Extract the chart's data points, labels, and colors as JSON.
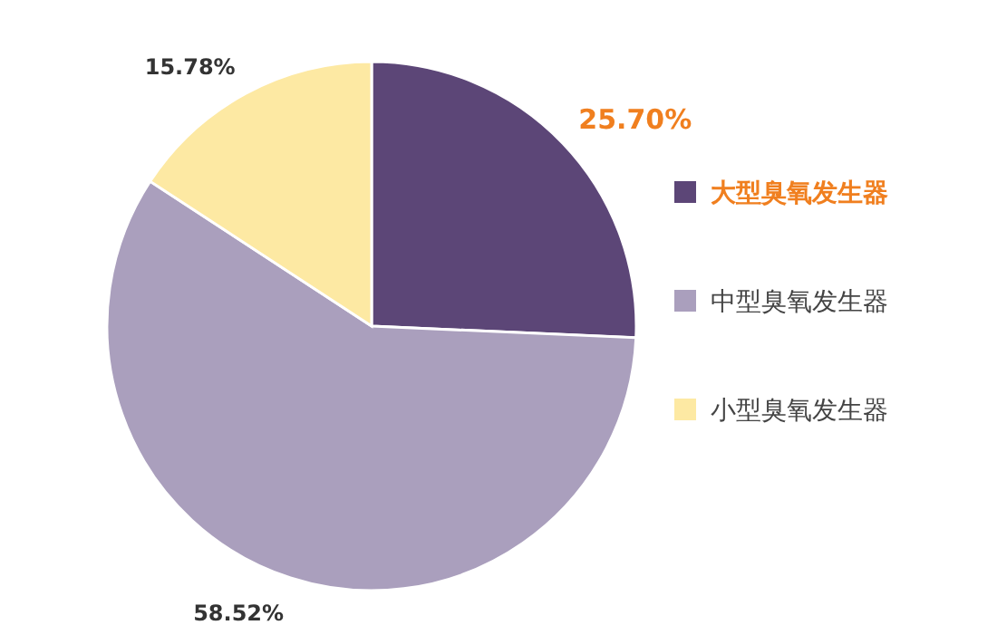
{
  "chart_data": {
    "type": "pie",
    "categories": [
      "大型臭氧发生器",
      "中型臭氧发生器",
      "小型臭氧发生器"
    ],
    "values": [
      25.7,
      58.52,
      15.78
    ],
    "colors": [
      "#5c4677",
      "#aa9fbd",
      "#fde9a3"
    ],
    "value_labels": [
      "25.70%",
      "58.52%",
      "15.78%"
    ],
    "legend": "right"
  }
}
